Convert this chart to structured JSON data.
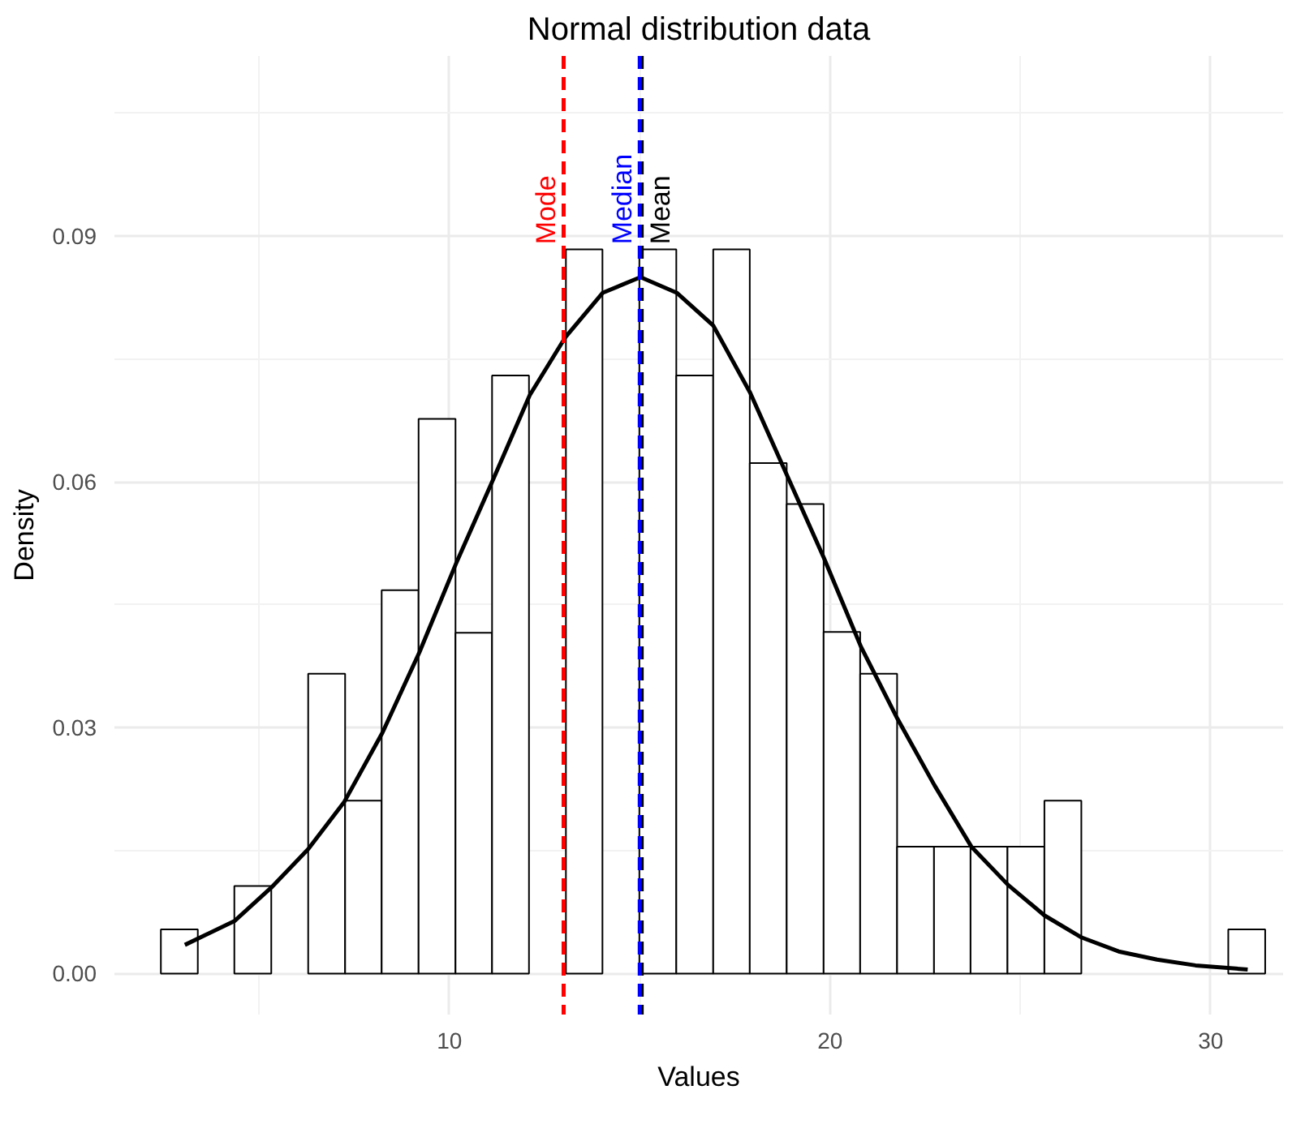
{
  "chart_data": {
    "type": "histogram",
    "title": "Normal distribution data",
    "xlabel": "Values",
    "ylabel": "Density",
    "bins": [
      2.42,
      3.39,
      4.35,
      5.32,
      6.29,
      7.26,
      8.22,
      9.19,
      10.16,
      11.12,
      12.09,
      13.06,
      14.02,
      14.99,
      15.96,
      16.93,
      17.89,
      18.86,
      19.83,
      20.79,
      21.76,
      22.73,
      23.69,
      24.66,
      25.63,
      26.6,
      27.56,
      28.53,
      29.5,
      30.46,
      31.43
    ],
    "values": [
      0.0054,
      0,
      0.0107,
      0,
      0.0366,
      0.0211,
      0.0468,
      0.0677,
      0.0416,
      0.073,
      0,
      0.0884,
      0,
      0.0884,
      0.073,
      0.0884,
      0.0623,
      0.0573,
      0.0417,
      0.0366,
      0.0155,
      0.0155,
      0.0155,
      0.0155,
      0.0211,
      0,
      0,
      0,
      0,
      0.0054
    ],
    "color": "#ffffff",
    "series": [
      {
        "type": "line",
        "color": "#000000",
        "x": [
          3.05,
          4.35,
          5.32,
          6.29,
          7.23,
          8.24,
          9.21,
          10.17,
          11.13,
          12.11,
          13.05,
          14.03,
          15.02,
          15.97,
          16.93,
          17.9,
          18.87,
          19.84,
          20.81,
          21.77,
          22.74,
          23.71,
          24.68,
          25.63,
          26.61,
          27.58,
          28.59,
          29.6,
          30.97
        ],
        "values": [
          0.0035,
          0.0064,
          0.0105,
          0.0152,
          0.0209,
          0.0294,
          0.0392,
          0.05,
          0.0601,
          0.0706,
          0.0777,
          0.0831,
          0.085,
          0.0831,
          0.0791,
          0.0709,
          0.0608,
          0.0507,
          0.0399,
          0.0311,
          0.023,
          0.0155,
          0.0108,
          0.0071,
          0.0044,
          0.0027,
          0.0017,
          0.001,
          0.0005
        ]
      }
    ],
    "ref_lines": [
      {
        "axis": "x",
        "value": 13.0,
        "label": "Mode",
        "color": "#ff0000",
        "line_style": "dashed"
      },
      {
        "axis": "x",
        "value": 15.05,
        "label": "Mean",
        "color": "#000000",
        "line_style": "dashed"
      },
      {
        "axis": "x",
        "value": 15.0,
        "label": "Median",
        "color": "#0000ff",
        "line_style": "dashed"
      }
    ],
    "xlim": [
      1.2,
      31.9
    ],
    "ylim": [
      -0.005,
      0.112
    ],
    "xticks": [
      10,
      20,
      30
    ],
    "yticks": [
      {
        "value": 0,
        "label": "0.00"
      },
      {
        "value": 0.03,
        "label": "0.03"
      },
      {
        "value": 0.06,
        "label": "0.06"
      },
      {
        "value": 0.09,
        "label": "0.09"
      }
    ],
    "grid": true
  }
}
